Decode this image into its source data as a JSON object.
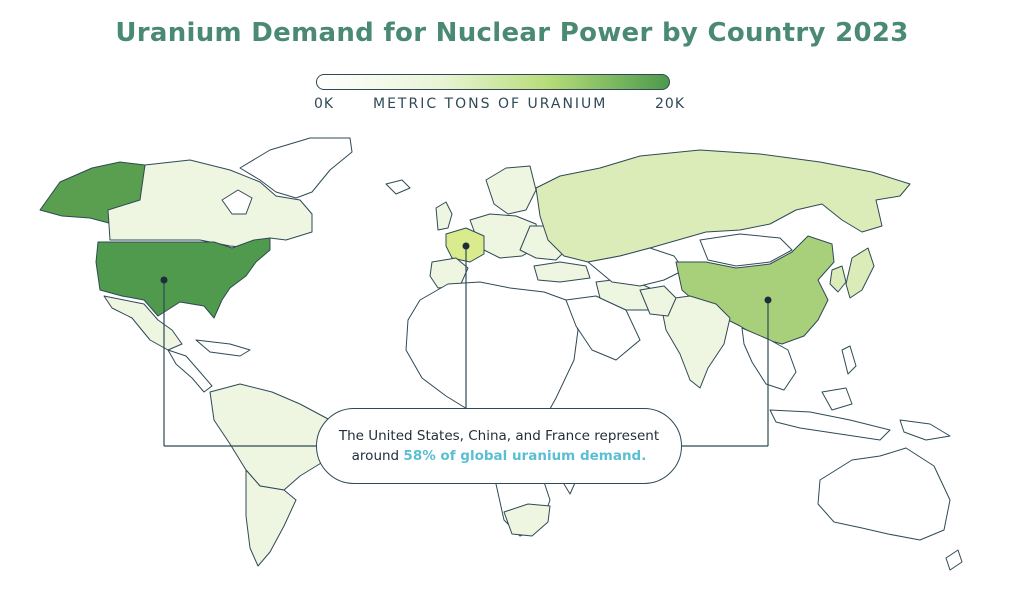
{
  "title": "Uranium Demand for Nuclear Power by Country 2023",
  "legend": {
    "min_label": "0K",
    "max_label": "20K",
    "caption": "METRIC TONS OF URANIUM",
    "scale_min": 0,
    "scale_max": 20000,
    "color_low": "#ffffff",
    "color_high": "#4c9a4c"
  },
  "callout": {
    "line1": "The United States, China, and France represent",
    "line2_prefix": "around ",
    "line2_highlight": "58% of global uranium demand.",
    "highlight_color": "#5bbfd3"
  },
  "highlighted_countries": [
    "United States",
    "China",
    "France"
  ],
  "colors": {
    "land_default": "#ffffff",
    "land_very_light": "#eef5e0",
    "land_light": "#dcecb8",
    "land_mid": "#a9d17a",
    "land_high": "#4c9a4c",
    "border": "#2f4a56"
  }
}
